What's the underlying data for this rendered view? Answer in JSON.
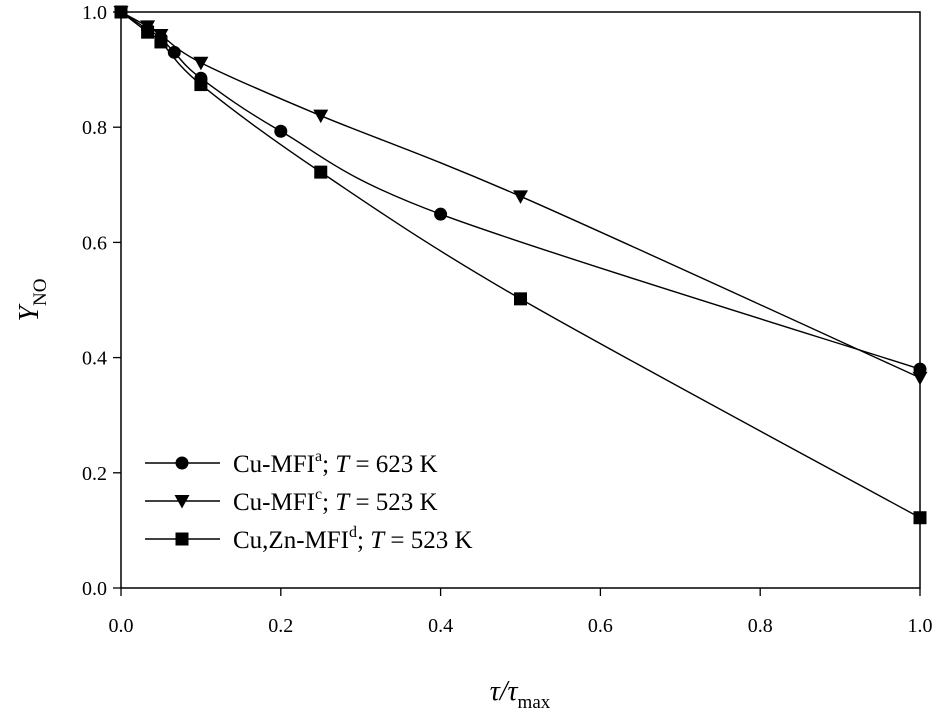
{
  "chart_data": {
    "type": "line",
    "xlabel": {
      "main": "τ/τ",
      "sub": "max"
    },
    "ylabel": {
      "main": "Y",
      "sub": "NO"
    },
    "xlim": [
      0,
      1
    ],
    "ylim": [
      0,
      1
    ],
    "xticks": [
      "0.0",
      "0.2",
      "0.4",
      "0.6",
      "0.8",
      "1.0"
    ],
    "yticks": [
      "0.0",
      "0.2",
      "0.4",
      "0.6",
      "0.8",
      "1.0"
    ],
    "grid": false,
    "legend_position": "bottom-left",
    "colors": {
      "line": "#000000",
      "marker": "#000000"
    },
    "series": [
      {
        "name": {
          "base": "Cu-MFI",
          "sup": "a",
          "rest": "; ",
          "var": "T",
          "cond": " = 623 K"
        },
        "marker": "circle",
        "x": [
          0.0,
          0.0333,
          0.05,
          0.0667,
          0.1,
          0.2,
          0.4,
          1.0
        ],
        "y": [
          1.0,
          0.97,
          0.955,
          0.93,
          0.885,
          0.793,
          0.649,
          0.38
        ]
      },
      {
        "name": {
          "base": "Cu-MFI",
          "sup": "c",
          "rest": "; ",
          "var": "T",
          "cond": " = 523 K"
        },
        "marker": "triangle-down",
        "x": [
          0.0,
          0.0333,
          0.05,
          0.1,
          0.25,
          0.5,
          1.0
        ],
        "y": [
          1.0,
          0.975,
          0.96,
          0.912,
          0.82,
          0.68,
          0.365
        ]
      },
      {
        "name": {
          "base": "Cu,Zn-MFI",
          "sup": "d",
          "rest": "; ",
          "var": "T",
          "cond": " = 523 K"
        },
        "marker": "square",
        "x": [
          0.0,
          0.0333,
          0.05,
          0.1,
          0.25,
          0.5,
          1.0
        ],
        "y": [
          1.0,
          0.965,
          0.948,
          0.874,
          0.722,
          0.502,
          0.122
        ]
      }
    ]
  }
}
